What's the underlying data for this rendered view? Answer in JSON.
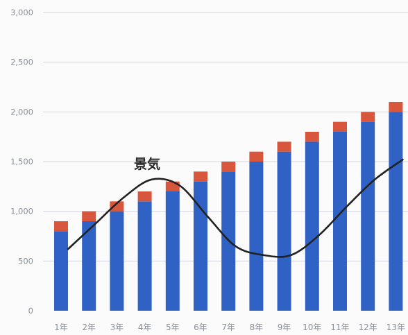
{
  "chart_data": {
    "type": "bar",
    "stacked": true,
    "categories": [
      "1年",
      "2年",
      "3年",
      "4年",
      "5年",
      "6年",
      "7年",
      "8年",
      "9年",
      "10年",
      "11年",
      "12年",
      "13年"
    ],
    "series": [
      {
        "values": [
          800,
          900,
          1000,
          1100,
          1200,
          1300,
          1400,
          1500,
          1600,
          1700,
          1800,
          1900,
          2000
        ],
        "color": "#2f62c4"
      },
      {
        "values": [
          100,
          100,
          100,
          100,
          100,
          100,
          100,
          100,
          100,
          100,
          100,
          100,
          100
        ],
        "color": "#d8573c"
      }
    ],
    "trend_line": {
      "type": "line",
      "color": "#222222",
      "x": [
        "1年",
        "2年",
        "3年",
        "4年",
        "5年",
        "6年",
        "7年",
        "8年",
        "9年",
        "10年",
        "11年",
        "12年",
        "13年"
      ],
      "y": [
        620,
        880,
        1140,
        1320,
        1260,
        950,
        650,
        560,
        560,
        760,
        1050,
        1320,
        1520
      ]
    },
    "annotation": "景気",
    "y_ticks": [
      "0",
      "500",
      "1,000",
      "1,500",
      "2,000",
      "2,500",
      "3,000"
    ],
    "ylim": [
      0,
      3000
    ],
    "grid": true,
    "legend": "none"
  }
}
